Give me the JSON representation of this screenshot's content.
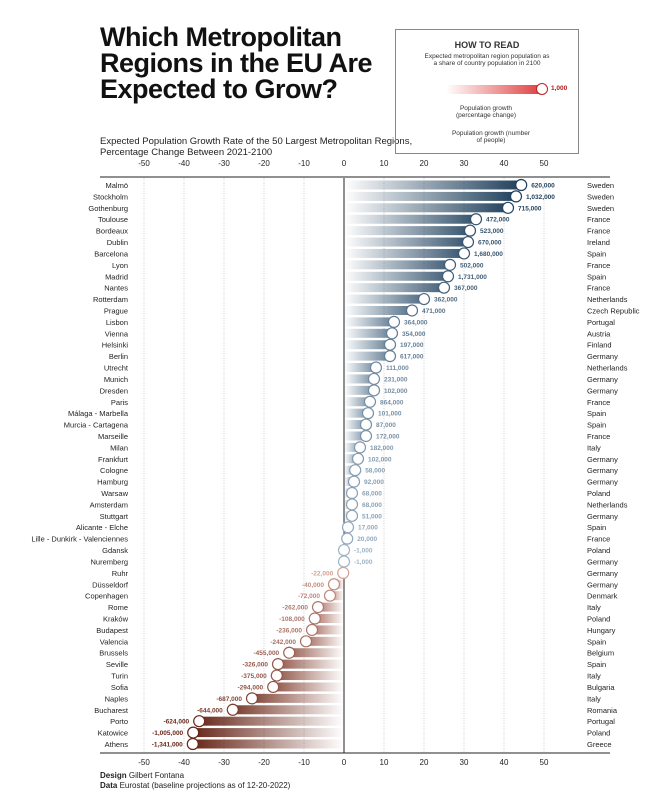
{
  "title": "Which Metropolitan Regions in the EU Are Expected to Grow?",
  "subtitle": "Expected Population Growth Rate of the 50 Largest Metropolitan Regions, Percentage Change Between 2021-2100",
  "how_to_read": {
    "heading": "HOW TO READ",
    "share_note": "Expected metropolitan region population as a share of country population in 2100",
    "example_value": "1,000",
    "growth_pct": "Population growth (percentage change)",
    "growth_people": "Population growth (number of people)"
  },
  "footer": {
    "design_label": "Design",
    "design": "Gilbert Fontana",
    "data_label": "Data",
    "data": "Eurostat (baseline projections as of 12-20-2022)"
  },
  "colors": {
    "positive": "#1f3f5b",
    "negative": "#5c1a0c"
  },
  "chart_data": {
    "type": "bar",
    "xlim": [
      -50,
      50
    ],
    "xticks": [
      -50,
      -40,
      -30,
      -20,
      -10,
      0,
      10,
      20,
      30,
      40,
      50
    ],
    "grid": true,
    "categories": [
      "Malmö",
      "Stockholm",
      "Gothenburg",
      "Toulouse",
      "Bordeaux",
      "Dublin",
      "Barcelona",
      "Lyon",
      "Madrid",
      "Nantes",
      "Rotterdam",
      "Prague",
      "Lisbon",
      "Vienna",
      "Helsinki",
      "Berlin",
      "Utrecht",
      "Munich",
      "Dresden",
      "Paris",
      "Málaga - Marbella",
      "Murcia - Cartagena",
      "Marseille",
      "Milan",
      "Frankfurt",
      "Cologne",
      "Hamburg",
      "Warsaw",
      "Amsterdam",
      "Stuttgart",
      "Alicante - Elche",
      "Lille - Dunkirk - Valenciennes",
      "Gdansk",
      "Nuremberg",
      "Ruhr",
      "Düsseldorf",
      "Copenhagen",
      "Rome",
      "Kraków",
      "Budapest",
      "Valencia",
      "Brussels",
      "Seville",
      "Turin",
      "Sofia",
      "Naples",
      "Bucharest",
      "Porto",
      "Katowice",
      "Athens"
    ],
    "countries": [
      "Sweden",
      "Sweden",
      "Sweden",
      "France",
      "France",
      "Ireland",
      "Spain",
      "France",
      "Spain",
      "France",
      "Netherlands",
      "Czech Republic",
      "Portugal",
      "Austria",
      "Finland",
      "Germany",
      "Netherlands",
      "Germany",
      "Germany",
      "France",
      "Spain",
      "Spain",
      "France",
      "Italy",
      "Germany",
      "Germany",
      "Germany",
      "Poland",
      "Netherlands",
      "Germany",
      "Spain",
      "France",
      "Poland",
      "Germany",
      "Germany",
      "Germany",
      "Denmark",
      "Italy",
      "Poland",
      "Hungary",
      "Spain",
      "Belgium",
      "Spain",
      "Italy",
      "Bulgaria",
      "Italy",
      "Romania",
      "Portugal",
      "Poland",
      "Greece"
    ],
    "values": [
      44.3,
      43,
      41,
      33,
      31.5,
      31,
      30,
      26.5,
      26,
      25,
      20,
      17,
      12.5,
      12,
      11.5,
      11.5,
      8,
      7.5,
      7.5,
      6.5,
      6,
      5.5,
      5.5,
      4,
      3.5,
      2.8,
      2.5,
      2,
      2,
      2,
      1,
      0.8,
      0,
      0,
      -0.2,
      -2.5,
      -3.5,
      -6.5,
      -7.3,
      -8,
      -9.5,
      -13.7,
      -16.5,
      -16.8,
      -17.7,
      -23,
      -27.8,
      -36.2,
      -37.7,
      -37.8
    ],
    "labels": [
      "620,000",
      "1,032,000",
      "715,000",
      "472,000",
      "523,000",
      "670,000",
      "1,680,000",
      "502,000",
      "1,731,000",
      "367,000",
      "362,000",
      "471,000",
      "364,000",
      "354,000",
      "197,000",
      "617,000",
      "111,000",
      "231,000",
      "102,000",
      "864,000",
      "101,000",
      "87,000",
      "172,000",
      "182,000",
      "102,000",
      "58,000",
      "92,000",
      "68,000",
      "68,000",
      "51,000",
      "17,000",
      "20,000",
      "-1,000",
      "-1,000",
      "-22,000",
      "-40,000",
      "-72,000",
      "-262,000",
      "-108,000",
      "-236,000",
      "-242,000",
      "-455,000",
      "-326,000",
      "-375,000",
      "-294,000",
      "-687,000",
      "-644,000",
      "-624,000",
      "-1,005,000",
      "-1,341,000"
    ]
  }
}
